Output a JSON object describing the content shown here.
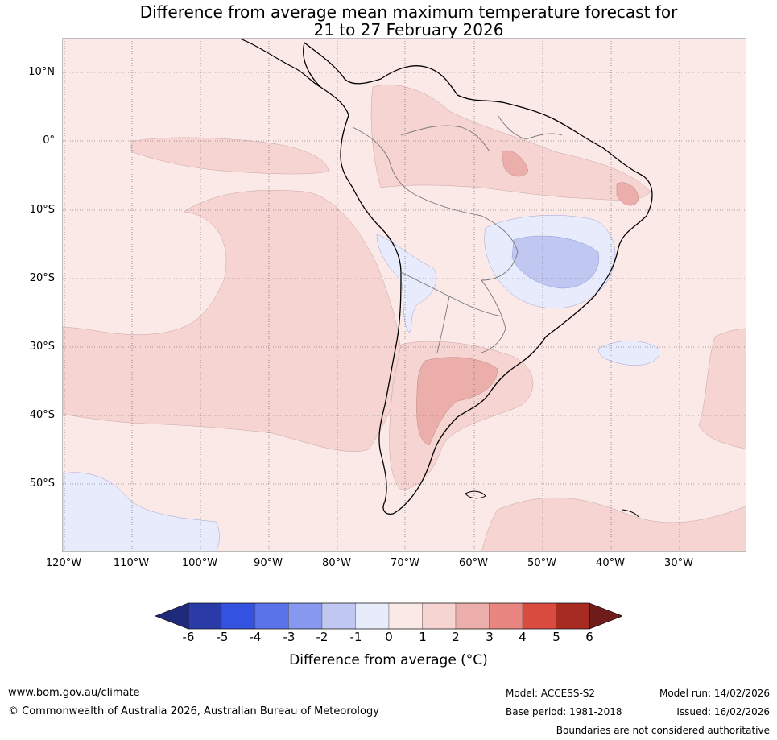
{
  "title": {
    "line1": "Difference from average mean maximum temperature forecast for",
    "line2": "21 to 27 February 2026"
  },
  "map": {
    "region": "South America",
    "lat_labels": [
      "10°N",
      "0°",
      "10°S",
      "20°S",
      "30°S",
      "40°S",
      "50°S"
    ],
    "lon_labels": [
      "120°W",
      "110°W",
      "100°W",
      "90°W",
      "80°W",
      "70°W",
      "60°W",
      "50°W",
      "40°W",
      "30°W"
    ],
    "colors": {
      "ocean_base": "#fbe9e8",
      "anomaly_0_1": "#fbe9e8",
      "anomaly_1_2": "#f5d4d2",
      "anomaly_2_3": "#ecaeab",
      "anomaly_m1_0": "#e8ebfb",
      "anomaly_m2_m1": "#c0c8f2",
      "coast": "#000000",
      "border": "#777777"
    }
  },
  "colorbar": {
    "ticks": [
      "-6",
      "-5",
      "-4",
      "-3",
      "-2",
      "-1",
      "0",
      "1",
      "2",
      "3",
      "4",
      "5",
      "6"
    ],
    "colors": [
      "#2a3ba8",
      "#3352e0",
      "#5b73e8",
      "#8799ee",
      "#c0c8f2",
      "#e8ebfb",
      "#fbe9e8",
      "#f5d4d2",
      "#ecaeab",
      "#e9867f",
      "#d94a3f",
      "#a82b22"
    ],
    "low_extend": "#1f2a7a",
    "high_extend": "#701c1a",
    "label": "Difference from average (°C)"
  },
  "footer": {
    "url": "www.bom.gov.au/climate",
    "copyright": "© Commonwealth of Australia 2026, Australian Bureau of Meteorology",
    "model": "Model: ACCESS-S2",
    "base_period": "Base period: 1981-2018",
    "model_run": "Model run: 14/02/2026",
    "issued": "Issued: 16/02/2026",
    "disclaimer": "Boundaries are not considered authoritative"
  }
}
